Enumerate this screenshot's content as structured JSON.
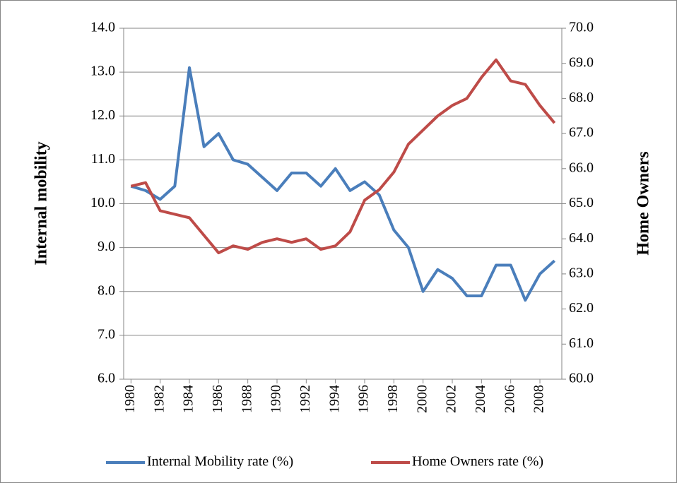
{
  "chart_data": {
    "type": "line",
    "y_label": "Internal mobility",
    "y2_label": "Home Owners",
    "x": [
      1980,
      1981,
      1982,
      1983,
      1984,
      1985,
      1986,
      1987,
      1988,
      1989,
      1990,
      1991,
      1992,
      1993,
      1994,
      1995,
      1996,
      1997,
      1998,
      1999,
      2000,
      2001,
      2002,
      2003,
      2004,
      2005,
      2006,
      2007,
      2008,
      2009
    ],
    "xlim": [
      1979.5,
      2009.5
    ],
    "xticks": [
      1980,
      1982,
      1984,
      1986,
      1988,
      1990,
      1992,
      1994,
      1996,
      1998,
      2000,
      2002,
      2004,
      2006,
      2008
    ],
    "ylim": [
      6,
      14
    ],
    "yticks": [
      {
        "value": 6,
        "label": "6.0"
      },
      {
        "value": 7,
        "label": "7.0"
      },
      {
        "value": 8,
        "label": "8.0"
      },
      {
        "value": 9,
        "label": "9.0"
      },
      {
        "value": 10,
        "label": "10.0"
      },
      {
        "value": 11,
        "label": "11.0"
      },
      {
        "value": 12,
        "label": "12.0"
      },
      {
        "value": 13,
        "label": "13.0"
      },
      {
        "value": 14,
        "label": "14.0"
      }
    ],
    "y2lim": [
      60,
      70
    ],
    "y2ticks": [
      {
        "value": 60,
        "label": "60.0"
      },
      {
        "value": 61,
        "label": "61.0"
      },
      {
        "value": 62,
        "label": "62.0"
      },
      {
        "value": 63,
        "label": "63.0"
      },
      {
        "value": 64,
        "label": "64.0"
      },
      {
        "value": 65,
        "label": "65.0"
      },
      {
        "value": 66,
        "label": "66.0"
      },
      {
        "value": 67,
        "label": "67.0"
      },
      {
        "value": 68,
        "label": "68.0"
      },
      {
        "value": 69,
        "label": "69.0"
      },
      {
        "value": 70,
        "label": "70.0"
      }
    ],
    "grid": true,
    "legend": "bottom",
    "series": [
      {
        "name": "Internal Mobility rate (%)",
        "color": "#4a7ebb",
        "values": [
          10.4,
          10.3,
          10.1,
          10.4,
          13.1,
          11.3,
          11.6,
          11.0,
          10.9,
          10.6,
          10.3,
          10.7,
          10.7,
          10.4,
          10.8,
          10.3,
          10.5,
          10.2,
          9.4,
          9.0,
          8.0,
          8.5,
          8.3,
          7.9,
          7.9,
          8.6,
          8.6,
          7.8,
          8.4,
          8.7
        ]
      },
      {
        "name": "Home Owners rate (%)",
        "color": "#be4b48",
        "axis": "y2",
        "values": [
          65.5,
          65.6,
          64.8,
          64.7,
          64.6,
          64.1,
          63.6,
          63.8,
          63.7,
          63.9,
          64.0,
          63.9,
          64.0,
          63.7,
          63.8,
          64.2,
          65.1,
          65.4,
          65.9,
          66.7,
          67.1,
          67.5,
          67.8,
          68.0,
          68.6,
          69.1,
          68.5,
          68.4,
          67.8,
          67.3
        ]
      }
    ]
  }
}
